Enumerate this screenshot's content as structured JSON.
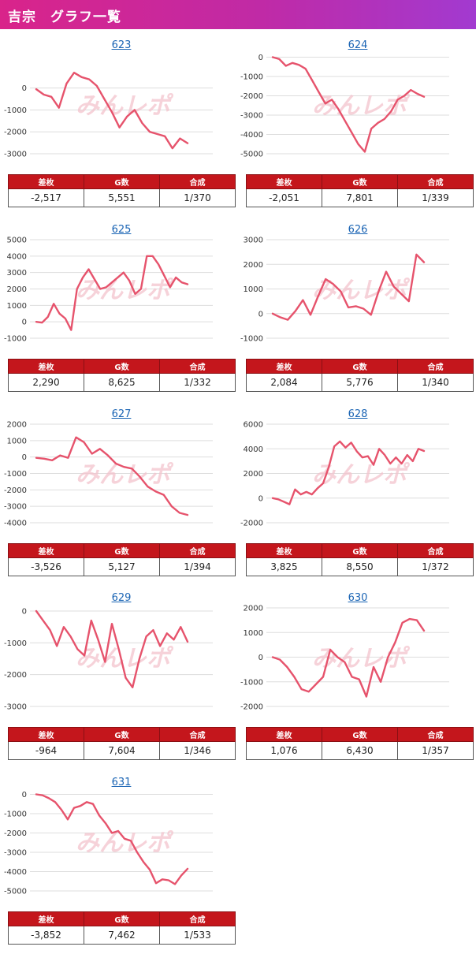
{
  "header": {
    "title": "吉宗　グラフ一覧"
  },
  "stats_labels": {
    "diff": "差枚",
    "games": "G数",
    "combined": "合成"
  },
  "watermark": "みんレポ",
  "colors": {
    "header_start": "#d9248a",
    "header_end": "#a23ad0",
    "line": "#e6536c",
    "table_header": "#c4161c",
    "link": "#1a64b4"
  },
  "panels": [
    {
      "title": "623",
      "diff": "-2,517",
      "games": "5,551",
      "combined": "1/370"
    },
    {
      "title": "624",
      "diff": "-2,051",
      "games": "7,801",
      "combined": "1/339"
    },
    {
      "title": "625",
      "diff": "2,290",
      "games": "8,625",
      "combined": "1/332"
    },
    {
      "title": "626",
      "diff": "2,084",
      "games": "5,776",
      "combined": "1/340"
    },
    {
      "title": "627",
      "diff": "-3,526",
      "games": "5,127",
      "combined": "1/394"
    },
    {
      "title": "628",
      "diff": "3,825",
      "games": "8,550",
      "combined": "1/372"
    },
    {
      "title": "629",
      "diff": "-964",
      "games": "7,604",
      "combined": "1/346"
    },
    {
      "title": "630",
      "diff": "1,076",
      "games": "6,430",
      "combined": "1/357"
    },
    {
      "title": "631",
      "diff": "-3,852",
      "games": "7,462",
      "combined": "1/533"
    }
  ],
  "chart_data": [
    {
      "type": "line",
      "title": "623",
      "yticks": [
        0,
        -1000,
        -2000,
        -3000
      ],
      "ylim": [
        -3000,
        1500
      ],
      "grid": true,
      "values": [
        -50,
        -300,
        -400,
        -900,
        200,
        700,
        500,
        400,
        100,
        -500,
        -1100,
        -1800,
        -1300,
        -1000,
        -1600,
        -2000,
        -2100,
        -2200,
        -2750,
        -2300,
        -2517
      ]
    },
    {
      "type": "line",
      "title": "624",
      "yticks": [
        0,
        -1000,
        -2000,
        -3000,
        -4000,
        -5000
      ],
      "ylim": [
        -5000,
        100
      ],
      "grid": true,
      "values": [
        0,
        -100,
        -450,
        -300,
        -400,
        -600,
        -1200,
        -1800,
        -2400,
        -2200,
        -2700,
        -3300,
        -3900,
        -4500,
        -4900,
        -3700,
        -3400,
        -3200,
        -2800,
        -2200,
        -2000,
        -1700,
        -1900,
        -2051
      ]
    },
    {
      "type": "line",
      "title": "625",
      "yticks": [
        5000,
        4000,
        3000,
        2000,
        1000,
        0,
        -1000
      ],
      "ylim": [
        -1000,
        5000
      ],
      "grid": true,
      "values": [
        0,
        -50,
        300,
        1100,
        500,
        200,
        -500,
        2000,
        2700,
        3200,
        2600,
        2000,
        2100,
        2400,
        2700,
        3000,
        2500,
        1700,
        2000,
        4000,
        4000,
        3500,
        2800,
        2100,
        2700,
        2400,
        2290
      ]
    },
    {
      "type": "line",
      "title": "626",
      "yticks": [
        3000,
        2000,
        1000,
        0,
        -1000
      ],
      "ylim": [
        -1000,
        3000
      ],
      "grid": true,
      "values": [
        0,
        -150,
        -250,
        100,
        550,
        -50,
        700,
        1400,
        1200,
        900,
        250,
        300,
        200,
        -50,
        900,
        1700,
        1100,
        800,
        500,
        2400,
        2084
      ]
    },
    {
      "type": "line",
      "title": "627",
      "yticks": [
        2000,
        1000,
        0,
        -1000,
        -2000,
        -3000,
        -4000
      ],
      "ylim": [
        -4000,
        2000
      ],
      "grid": true,
      "values": [
        -50,
        -100,
        -200,
        100,
        -50,
        1200,
        900,
        200,
        500,
        100,
        -400,
        -600,
        -700,
        -1200,
        -1800,
        -2100,
        -2300,
        -3000,
        -3400,
        -3526
      ]
    },
    {
      "type": "line",
      "title": "628",
      "yticks": [
        6000,
        4000,
        2000,
        0,
        -2000
      ],
      "ylim": [
        -2000,
        6000
      ],
      "grid": true,
      "values": [
        0,
        -100,
        -300,
        -500,
        700,
        300,
        500,
        300,
        800,
        1200,
        2500,
        4200,
        4600,
        4100,
        4500,
        3800,
        3300,
        3400,
        2700,
        4000,
        3500,
        2800,
        3300,
        2800,
        3500,
        3000,
        4000,
        3825
      ]
    },
    {
      "type": "line",
      "title": "629",
      "yticks": [
        0,
        -1000,
        -2000,
        -3000
      ],
      "ylim": [
        -3000,
        100
      ],
      "grid": true,
      "values": [
        0,
        -300,
        -600,
        -1100,
        -500,
        -800,
        -1200,
        -1400,
        -300,
        -900,
        -1600,
        -400,
        -1200,
        -2100,
        -2400,
        -1500,
        -800,
        -600,
        -1100,
        -700,
        -900,
        -500,
        -964
      ]
    },
    {
      "type": "line",
      "title": "630",
      "yticks": [
        2000,
        1000,
        0,
        -1000,
        -2000
      ],
      "ylim": [
        -2000,
        2000
      ],
      "grid": true,
      "values": [
        0,
        -100,
        -400,
        -800,
        -1300,
        -1400,
        -1100,
        -800,
        300,
        0,
        -200,
        -800,
        -900,
        -1600,
        -400,
        -1000,
        0,
        600,
        1400,
        1550,
        1500,
        1076
      ]
    },
    {
      "type": "line",
      "title": "631",
      "yticks": [
        0,
        -1000,
        -2000,
        -3000,
        -4000,
        -5000
      ],
      "ylim": [
        -5000,
        100
      ],
      "grid": true,
      "values": [
        0,
        -50,
        -200,
        -400,
        -800,
        -1300,
        -700,
        -600,
        -400,
        -500,
        -1100,
        -1500,
        -2000,
        -1900,
        -2300,
        -2400,
        -3000,
        -3500,
        -3900,
        -4600,
        -4400,
        -4450,
        -4650,
        -4200,
        -3852
      ]
    }
  ]
}
